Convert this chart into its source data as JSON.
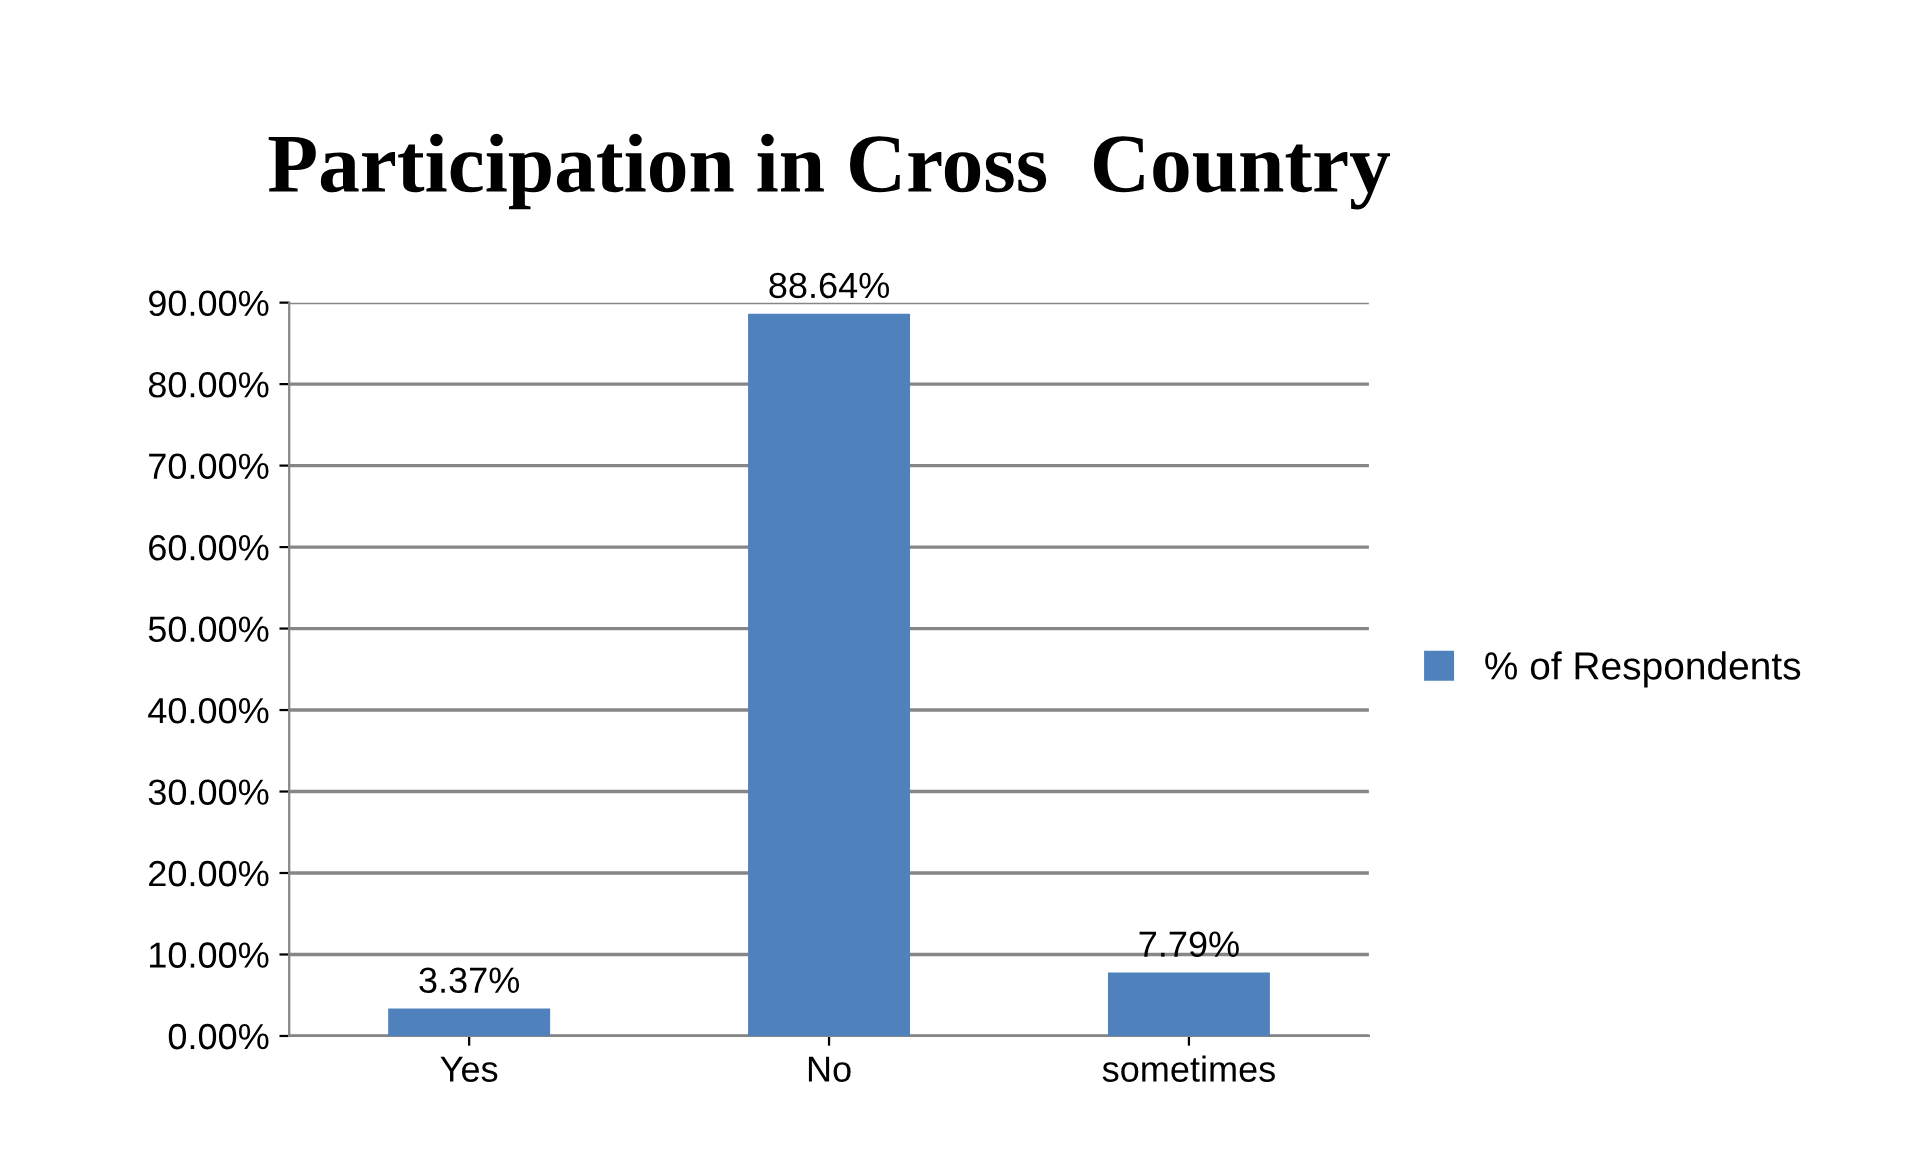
{
  "chart_data": {
    "type": "bar",
    "title": "Participation in Cross  Country",
    "categories": [
      "Yes",
      "No",
      "sometimes"
    ],
    "series": [
      {
        "name": "% of Respondents",
        "color": "#4f81bd",
        "values": [
          3.37,
          88.64,
          7.79
        ],
        "value_labels": [
          "3.37%",
          "88.64%",
          "7.79%"
        ]
      }
    ],
    "ylim": [
      0,
      90
    ],
    "yticks": [
      {
        "value": 0,
        "label": "0.00%"
      },
      {
        "value": 10,
        "label": "10.00%"
      },
      {
        "value": 20,
        "label": "20.00%"
      },
      {
        "value": 30,
        "label": "30.00%"
      },
      {
        "value": 40,
        "label": "40.00%"
      },
      {
        "value": 50,
        "label": "50.00%"
      },
      {
        "value": 60,
        "label": "60.00%"
      },
      {
        "value": 70,
        "label": "70.00%"
      },
      {
        "value": 80,
        "label": "80.00%"
      },
      {
        "value": 90,
        "label": "90.00%"
      }
    ],
    "grid": "y",
    "legend": "right"
  }
}
